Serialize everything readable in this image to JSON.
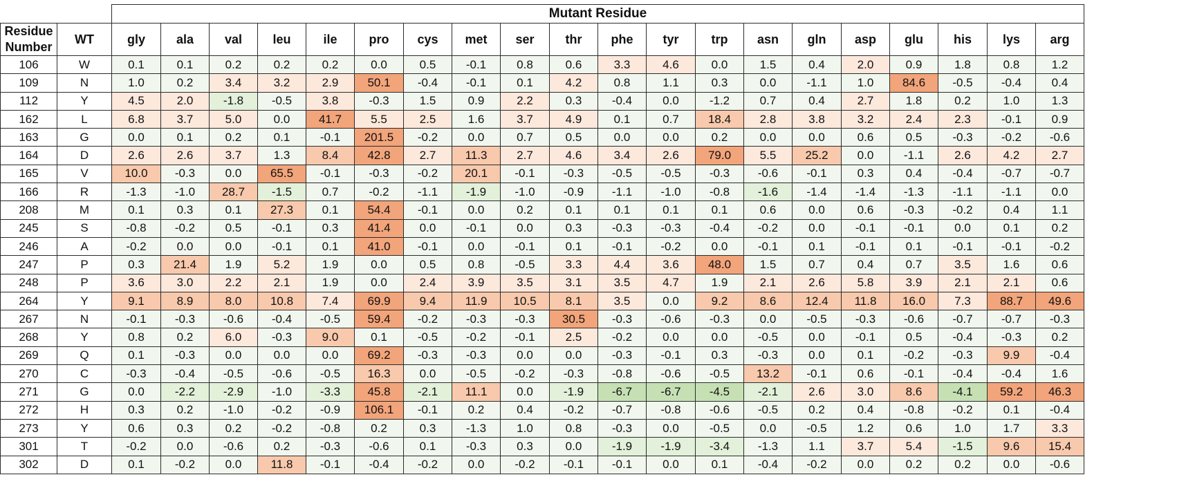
{
  "header": {
    "mutant_title": "Mutant Residue",
    "residue_number_label": "Residue Number",
    "wt_label": "WT"
  },
  "columns": [
    "gly",
    "ala",
    "val",
    "leu",
    "ile",
    "pro",
    "cys",
    "met",
    "ser",
    "thr",
    "phe",
    "tyr",
    "trp",
    "asn",
    "gln",
    "asp",
    "glu",
    "his",
    "lys",
    "arg"
  ],
  "rows": [
    {
      "num": "106",
      "wt": "W",
      "values": [
        "0.1",
        "0.1",
        "0.2",
        "0.2",
        "0.2",
        "0.0",
        "0.5",
        "-0.1",
        "0.8",
        "0.6",
        "3.3",
        "4.6",
        "0.0",
        "1.5",
        "0.4",
        "2.0",
        "0.9",
        "1.8",
        "0.8",
        "1.2"
      ]
    },
    {
      "num": "109",
      "wt": "N",
      "values": [
        "1.0",
        "0.2",
        "3.4",
        "3.2",
        "2.9",
        "50.1",
        "-0.4",
        "-0.1",
        "0.1",
        "4.2",
        "0.8",
        "1.1",
        "0.3",
        "0.0",
        "-1.1",
        "1.0",
        "84.6",
        "-0.5",
        "-0.4",
        "0.4"
      ]
    },
    {
      "num": "112",
      "wt": "Y",
      "values": [
        "4.5",
        "2.0",
        "-1.8",
        "-0.5",
        "3.8",
        "-0.3",
        "1.5",
        "0.9",
        "2.2",
        "0.3",
        "-0.4",
        "0.0",
        "-1.2",
        "0.7",
        "0.4",
        "2.7",
        "1.8",
        "0.2",
        "1.0",
        "1.3"
      ]
    },
    {
      "num": "162",
      "wt": "L",
      "values": [
        "6.8",
        "3.7",
        "5.0",
        "0.0",
        "41.7",
        "5.5",
        "2.5",
        "1.6",
        "3.7",
        "4.9",
        "0.1",
        "0.7",
        "18.4",
        "2.8",
        "3.8",
        "3.2",
        "2.4",
        "2.3",
        "-0.1",
        "0.9"
      ]
    },
    {
      "num": "163",
      "wt": "G",
      "values": [
        "0.0",
        "0.1",
        "0.2",
        "0.1",
        "-0.1",
        "201.5",
        "-0.2",
        "0.0",
        "0.7",
        "0.5",
        "0.0",
        "0.0",
        "0.2",
        "0.0",
        "0.0",
        "0.6",
        "0.5",
        "-0.3",
        "-0.2",
        "-0.6"
      ]
    },
    {
      "num": "164",
      "wt": "D",
      "values": [
        "2.6",
        "2.6",
        "3.7",
        "1.3",
        "8.4",
        "42.8",
        "2.7",
        "11.3",
        "2.7",
        "4.6",
        "3.4",
        "2.6",
        "79.0",
        "5.5",
        "25.2",
        "0.0",
        "-1.1",
        "2.6",
        "4.2",
        "2.7"
      ]
    },
    {
      "num": "165",
      "wt": "V",
      "values": [
        "10.0",
        "-0.3",
        "0.0",
        "65.5",
        "-0.1",
        "-0.3",
        "-0.2",
        "20.1",
        "-0.1",
        "-0.3",
        "-0.5",
        "-0.5",
        "-0.3",
        "-0.6",
        "-0.1",
        "0.3",
        "0.4",
        "-0.4",
        "-0.7",
        "-0.7"
      ]
    },
    {
      "num": "166",
      "wt": "R",
      "values": [
        "-1.3",
        "-1.0",
        "28.7",
        "-1.5",
        "0.7",
        "-0.2",
        "-1.1",
        "-1.9",
        "-1.0",
        "-0.9",
        "-1.1",
        "-1.0",
        "-0.8",
        "-1.6",
        "-1.4",
        "-1.4",
        "-1.3",
        "-1.1",
        "-1.1",
        "0.0"
      ]
    },
    {
      "num": "208",
      "wt": "M",
      "values": [
        "0.1",
        "0.3",
        "0.1",
        "27.3",
        "0.1",
        "54.4",
        "-0.1",
        "0.0",
        "0.2",
        "0.1",
        "0.1",
        "0.1",
        "0.1",
        "0.6",
        "0.0",
        "0.6",
        "-0.3",
        "-0.2",
        "0.4",
        "1.1"
      ]
    },
    {
      "num": "245",
      "wt": "S",
      "values": [
        "-0.8",
        "-0.2",
        "0.5",
        "-0.1",
        "0.3",
        "41.4",
        "0.0",
        "-0.1",
        "0.0",
        "0.3",
        "-0.3",
        "-0.3",
        "-0.4",
        "-0.2",
        "0.0",
        "-0.1",
        "-0.1",
        "0.0",
        "0.1",
        "0.2"
      ]
    },
    {
      "num": "246",
      "wt": "A",
      "values": [
        "-0.2",
        "0.0",
        "0.0",
        "-0.1",
        "0.1",
        "41.0",
        "-0.1",
        "0.0",
        "-0.1",
        "0.1",
        "-0.1",
        "-0.2",
        "0.0",
        "-0.1",
        "0.1",
        "-0.1",
        "0.1",
        "-0.1",
        "-0.1",
        "-0.2"
      ]
    },
    {
      "num": "247",
      "wt": "P",
      "values": [
        "0.3",
        "21.4",
        "1.9",
        "5.2",
        "1.9",
        "0.0",
        "0.5",
        "0.8",
        "-0.5",
        "3.3",
        "4.4",
        "3.6",
        "48.0",
        "1.5",
        "0.7",
        "0.4",
        "0.7",
        "3.5",
        "1.6",
        "0.6"
      ]
    },
    {
      "num": "248",
      "wt": "P",
      "values": [
        "3.6",
        "3.0",
        "2.2",
        "2.1",
        "1.9",
        "0.0",
        "2.4",
        "3.9",
        "3.5",
        "3.1",
        "3.5",
        "4.7",
        "1.9",
        "2.1",
        "2.6",
        "5.8",
        "3.9",
        "2.1",
        "2.1",
        "0.6"
      ]
    },
    {
      "num": "264",
      "wt": "Y",
      "values": [
        "9.1",
        "8.9",
        "8.0",
        "10.8",
        "7.4",
        "69.9",
        "9.4",
        "11.9",
        "10.5",
        "8.1",
        "3.5",
        "0.0",
        "9.2",
        "8.6",
        "12.4",
        "11.8",
        "16.0",
        "7.3",
        "88.7",
        "49.6"
      ]
    },
    {
      "num": "267",
      "wt": "N",
      "values": [
        "-0.1",
        "-0.3",
        "-0.6",
        "-0.4",
        "-0.5",
        "59.4",
        "-0.2",
        "-0.3",
        "-0.3",
        "30.5",
        "-0.3",
        "-0.6",
        "-0.3",
        "0.0",
        "-0.5",
        "-0.3",
        "-0.6",
        "-0.7",
        "-0.7",
        "-0.3"
      ]
    },
    {
      "num": "268",
      "wt": "Y",
      "values": [
        "0.8",
        "0.2",
        "6.0",
        "-0.3",
        "9.0",
        "0.1",
        "-0.5",
        "-0.2",
        "-0.1",
        "2.5",
        "-0.2",
        "0.0",
        "0.0",
        "-0.5",
        "0.0",
        "-0.1",
        "0.5",
        "-0.4",
        "-0.3",
        "0.2"
      ]
    },
    {
      "num": "269",
      "wt": "Q",
      "values": [
        "0.1",
        "-0.3",
        "0.0",
        "0.0",
        "0.0",
        "69.2",
        "-0.3",
        "-0.3",
        "0.0",
        "0.0",
        "-0.3",
        "-0.1",
        "0.3",
        "-0.3",
        "0.0",
        "0.1",
        "-0.2",
        "-0.3",
        "9.9",
        "-0.4"
      ]
    },
    {
      "num": "270",
      "wt": "C",
      "values": [
        "-0.3",
        "-0.4",
        "-0.5",
        "-0.6",
        "-0.5",
        "16.3",
        "0.0",
        "-0.5",
        "-0.2",
        "-0.3",
        "-0.8",
        "-0.6",
        "-0.5",
        "13.2",
        "-0.1",
        "0.6",
        "-0.1",
        "-0.4",
        "-0.4",
        "1.6"
      ]
    },
    {
      "num": "271",
      "wt": "G",
      "values": [
        "0.0",
        "-2.2",
        "-2.9",
        "-1.0",
        "-3.3",
        "45.8",
        "-2.1",
        "11.1",
        "0.0",
        "-1.9",
        "-6.7",
        "-6.7",
        "-4.5",
        "-2.1",
        "2.6",
        "3.0",
        "8.6",
        "-4.1",
        "59.2",
        "46.3"
      ]
    },
    {
      "num": "272",
      "wt": "H",
      "values": [
        "0.3",
        "0.2",
        "-1.0",
        "-0.2",
        "-0.9",
        "106.1",
        "-0.1",
        "0.2",
        "0.4",
        "-0.2",
        "-0.7",
        "-0.8",
        "-0.6",
        "-0.5",
        "0.2",
        "0.4",
        "-0.8",
        "-0.2",
        "0.1",
        "-0.4"
      ]
    },
    {
      "num": "273",
      "wt": "Y",
      "values": [
        "0.6",
        "0.3",
        "0.2",
        "-0.2",
        "-0.8",
        "0.2",
        "0.3",
        "-1.3",
        "1.0",
        "0.8",
        "-0.3",
        "0.0",
        "-0.5",
        "0.0",
        "-0.5",
        "1.2",
        "0.6",
        "1.0",
        "1.7",
        "3.3"
      ]
    },
    {
      "num": "301",
      "wt": "T",
      "values": [
        "-0.2",
        "0.0",
        "-0.6",
        "0.2",
        "-0.3",
        "-0.6",
        "0.1",
        "-0.3",
        "0.3",
        "0.0",
        "-1.9",
        "-1.9",
        "-3.4",
        "-1.3",
        "1.1",
        "3.7",
        "5.4",
        "-1.5",
        "9.6",
        "15.4"
      ]
    },
    {
      "num": "302",
      "wt": "D",
      "values": [
        "0.1",
        "-0.2",
        "0.0",
        "11.8",
        "-0.1",
        "-0.4",
        "-0.2",
        "0.0",
        "-0.2",
        "-0.1",
        "-0.1",
        "0.0",
        "0.1",
        "-0.4",
        "-0.2",
        "0.0",
        "0.2",
        "0.2",
        "0.0",
        "-0.6"
      ]
    }
  ],
  "colors": {
    "near_zero": "#f1f7ee",
    "positive_light": "#fde8dc",
    "positive_mid": "#f8c9ac",
    "positive_strong": "#f2a47a",
    "negative_light": "#e3f0da",
    "negative_mid": "#c6e0b4",
    "grid_line": "#2b2b2b"
  }
}
